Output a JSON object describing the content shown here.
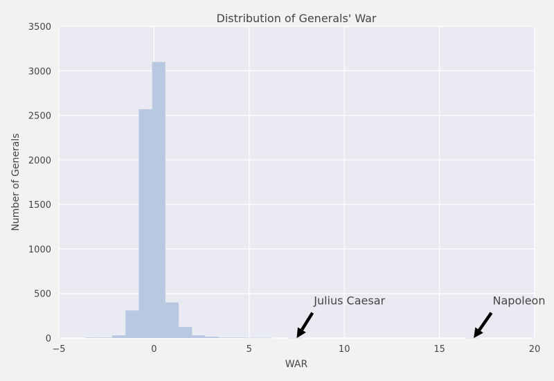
{
  "chart_data": {
    "type": "bar",
    "title": "Distribution of Generals' War",
    "xlabel": "WAR",
    "ylabel": "Number of Generals",
    "xlim": [
      -5,
      20
    ],
    "ylim": [
      0,
      3500
    ],
    "xticks": [
      -5,
      0,
      5,
      10,
      15,
      20
    ],
    "yticks": [
      0,
      500,
      1000,
      1500,
      2000,
      2500,
      3000,
      3500
    ],
    "xtick_labels": [
      "−5",
      "0",
      "5",
      "10",
      "15",
      "20"
    ],
    "ytick_labels": [
      "0",
      "500",
      "1000",
      "1500",
      "2000",
      "2500",
      "3000",
      "3500"
    ],
    "grid": true,
    "bin_width": 0.7,
    "bins": [
      {
        "x0": -3.6,
        "count": 5
      },
      {
        "x0": -2.9,
        "count": 5
      },
      {
        "x0": -2.2,
        "count": 30
      },
      {
        "x0": -1.5,
        "count": 310
      },
      {
        "x0": -0.8,
        "count": 2570
      },
      {
        "x0": -0.1,
        "count": 3100
      },
      {
        "x0": 0.6,
        "count": 400
      },
      {
        "x0": 1.3,
        "count": 125
      },
      {
        "x0": 2.0,
        "count": 30
      },
      {
        "x0": 2.7,
        "count": 15
      },
      {
        "x0": 3.4,
        "count": 5
      },
      {
        "x0": 4.1,
        "count": 5
      },
      {
        "x0": 4.8,
        "count": 3
      },
      {
        "x0": 5.5,
        "count": 3
      },
      {
        "x0": 7.1,
        "count": 2
      },
      {
        "x0": 16.4,
        "count": 2
      }
    ],
    "bar_color": "#b4c4e0",
    "plot_background": "#eaeaf2",
    "grid_color": "#ffffff",
    "annotations": [
      {
        "text": "Julius Caesar",
        "point": [
          7.5,
          0
        ],
        "text_pos": [
          8.4,
          400
        ]
      },
      {
        "text": "Napoleon",
        "point": [
          16.8,
          0
        ],
        "text_pos": [
          17.8,
          400
        ]
      }
    ]
  }
}
